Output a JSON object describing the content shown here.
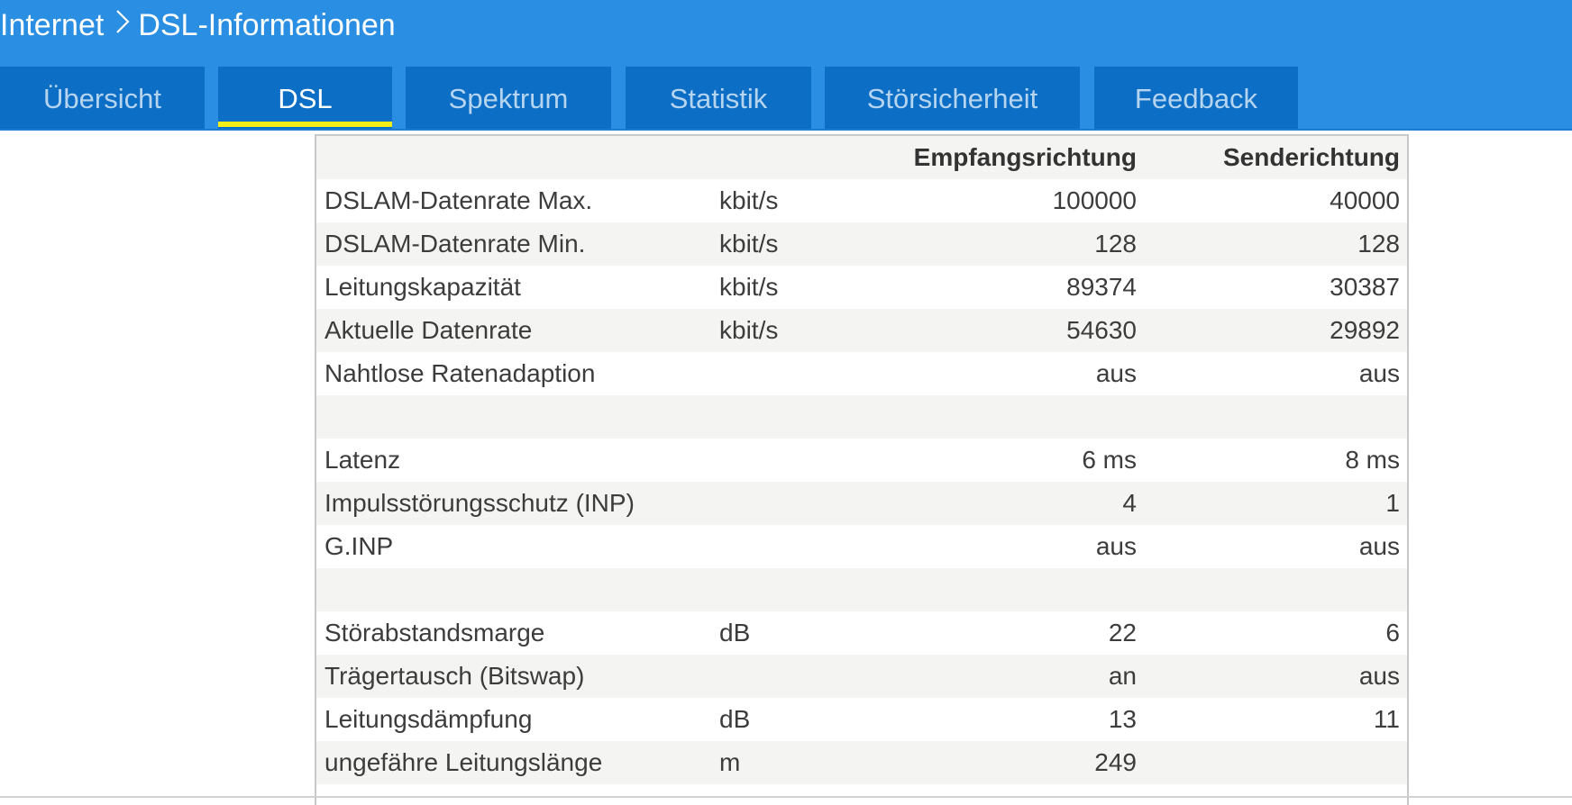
{
  "breadcrumb": {
    "parent": "Internet",
    "current": "DSL-Informationen"
  },
  "tabs": [
    {
      "label": "Übersicht",
      "active": false
    },
    {
      "label": "DSL",
      "active": true
    },
    {
      "label": "Spektrum",
      "active": false
    },
    {
      "label": "Statistik",
      "active": false
    },
    {
      "label": "Störsicherheit",
      "active": false
    },
    {
      "label": "Feedback",
      "active": false
    }
  ],
  "table": {
    "headers": {
      "label": "",
      "unit": "",
      "rx": "Empfangsrichtung",
      "tx": "Senderichtung"
    },
    "rows": [
      {
        "label": "DSLAM-Datenrate Max.",
        "unit": "kbit/s",
        "rx": "100000",
        "tx": "40000"
      },
      {
        "label": "DSLAM-Datenrate Min.",
        "unit": "kbit/s",
        "rx": "128",
        "tx": "128"
      },
      {
        "label": "Leitungskapazität",
        "unit": "kbit/s",
        "rx": "89374",
        "tx": "30387"
      },
      {
        "label": "Aktuelle Datenrate",
        "unit": "kbit/s",
        "rx": "54630",
        "tx": "29892"
      },
      {
        "label": "Nahtlose Ratenadaption",
        "unit": "",
        "rx": "aus",
        "tx": "aus"
      },
      {
        "label": "",
        "unit": "",
        "rx": "",
        "tx": ""
      },
      {
        "label": "Latenz",
        "unit": "",
        "rx": "6 ms",
        "tx": "8 ms"
      },
      {
        "label": "Impulsstörungsschutz (INP)",
        "unit": "",
        "rx": "4",
        "tx": "1"
      },
      {
        "label": "G.INP",
        "unit": "",
        "rx": "aus",
        "tx": "aus"
      },
      {
        "label": "",
        "unit": "",
        "rx": "",
        "tx": ""
      },
      {
        "label": "Störabstandsmarge",
        "unit": "dB",
        "rx": "22",
        "tx": "6"
      },
      {
        "label": "Trägertausch (Bitswap)",
        "unit": "",
        "rx": "an",
        "tx": "aus"
      },
      {
        "label": "Leitungsdämpfung",
        "unit": "dB",
        "rx": "13",
        "tx": "11"
      },
      {
        "label": "ungefähre Leitungslänge",
        "unit": "m",
        "rx": "249",
        "tx": ""
      }
    ]
  },
  "colors": {
    "header_bg": "#2a8ee3",
    "tab_bg": "#0d6ec5",
    "tab_active_underline": "#f2ec18",
    "row_shade": "#f4f4f2"
  }
}
